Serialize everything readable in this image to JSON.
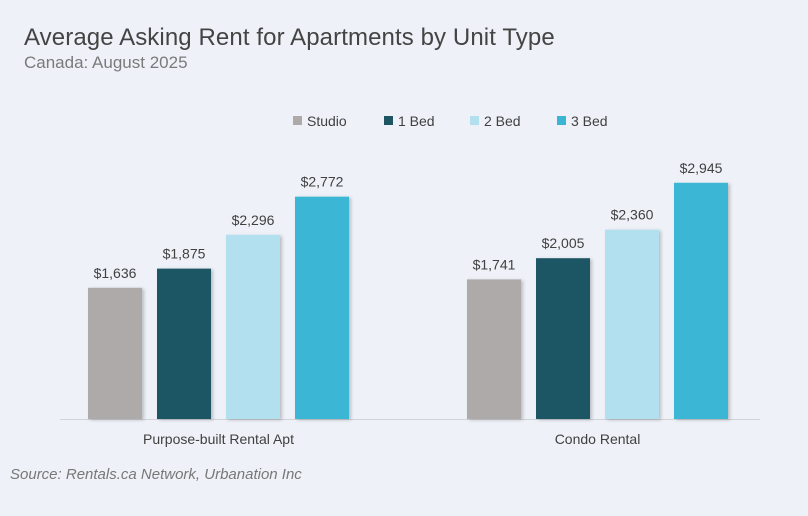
{
  "title": "Average Asking Rent for Apartments by Unit Type",
  "subtitle": "Canada: August 2025",
  "source": "Source: Rentals.ca Network, Urbanation Inc",
  "chart_data": {
    "type": "bar",
    "categories": [
      "Purpose-built Rental Apt",
      "Condo Rental"
    ],
    "series": [
      {
        "name": "Studio",
        "values": [
          1636,
          1741
        ],
        "labels": [
          "$1,636",
          "$1,741"
        ],
        "color": "#aeaaaa"
      },
      {
        "name": "1 Bed",
        "values": [
          1875,
          2005
        ],
        "labels": [
          "$1,875",
          "$2,005"
        ],
        "color": "#1d5563"
      },
      {
        "name": "2 Bed",
        "values": [
          2296,
          2360
        ],
        "labels": [
          "$2,296",
          "$2,360"
        ],
        "color": "#b3e0ee"
      },
      {
        "name": "3 Bed",
        "values": [
          2772,
          2945
        ],
        "labels": [
          "$2,772",
          "$2,945"
        ],
        "color": "#3ab6d4"
      }
    ],
    "legend_position": "top",
    "grid": false,
    "ylim": [
      0,
      3250
    ]
  }
}
